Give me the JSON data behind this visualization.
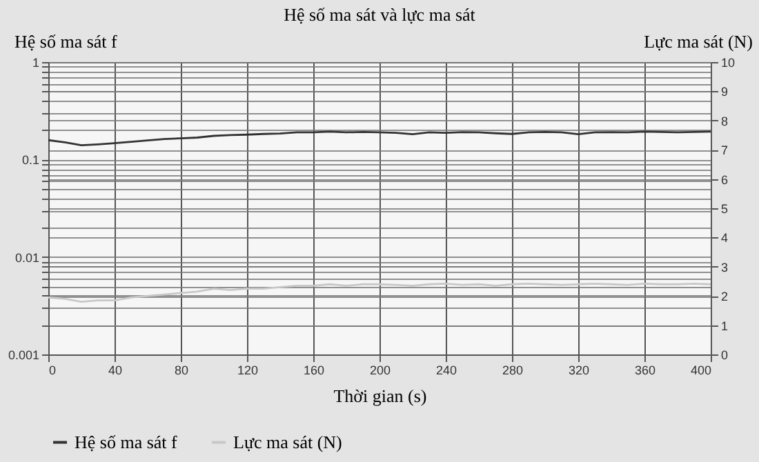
{
  "chart_data": {
    "type": "line",
    "title": "Hệ số ma sát và lực ma sát",
    "xlabel": "Thời gian (s)",
    "ylabel": "Hệ số ma sát f",
    "y2label": "Lực ma sát (N)",
    "x": [
      0,
      10,
      20,
      30,
      40,
      50,
      60,
      70,
      80,
      90,
      100,
      110,
      120,
      130,
      140,
      150,
      160,
      170,
      180,
      190,
      200,
      210,
      220,
      230,
      240,
      250,
      260,
      270,
      280,
      290,
      300,
      310,
      320,
      330,
      340,
      350,
      360,
      370,
      380,
      390,
      400
    ],
    "series": [
      {
        "name": "Hệ số ma sát f",
        "color": "#333333",
        "values": [
          0.158,
          0.15,
          0.14,
          0.143,
          0.147,
          0.152,
          0.157,
          0.162,
          0.165,
          0.168,
          0.175,
          0.178,
          0.18,
          0.183,
          0.185,
          0.19,
          0.19,
          0.193,
          0.19,
          0.192,
          0.19,
          0.188,
          0.182,
          0.19,
          0.188,
          0.191,
          0.19,
          0.186,
          0.183,
          0.19,
          0.192,
          0.19,
          0.182,
          0.19,
          0.191,
          0.19,
          0.193,
          0.192,
          0.19,
          0.192,
          0.193
        ]
      },
      {
        "name": "Lực ma sát (N)",
        "color": "#c8c8c8",
        "axis": "y2",
        "values": [
          1.95,
          1.9,
          1.8,
          1.85,
          1.85,
          1.95,
          2.0,
          2.05,
          2.1,
          2.15,
          2.25,
          2.2,
          2.25,
          2.25,
          2.3,
          2.35,
          2.35,
          2.4,
          2.35,
          2.4,
          2.4,
          2.38,
          2.35,
          2.4,
          2.42,
          2.38,
          2.4,
          2.35,
          2.4,
          2.42,
          2.4,
          2.38,
          2.4,
          2.42,
          2.4,
          2.38,
          2.42,
          2.4,
          2.4,
          2.42,
          2.4
        ]
      }
    ],
    "log": "y",
    "xlim": [
      0,
      400
    ],
    "xticks": [
      0,
      40,
      80,
      120,
      160,
      200,
      240,
      280,
      320,
      360,
      400
    ],
    "ylim": [
      0.001,
      1
    ],
    "yticks": [
      {
        "value": 0.001,
        "label": "0.001"
      },
      {
        "value": 0.002,
        "label": null
      },
      {
        "value": 0.003,
        "label": null
      },
      {
        "value": 0.004,
        "label": null
      },
      {
        "value": 0.005,
        "label": null
      },
      {
        "value": 0.006,
        "label": null
      },
      {
        "value": 0.007,
        "label": null
      },
      {
        "value": 0.008,
        "label": null
      },
      {
        "value": 0.009,
        "label": null
      },
      {
        "value": 0.01,
        "label": "0.01"
      },
      {
        "value": 0.02,
        "label": null
      },
      {
        "value": 0.03,
        "label": null
      },
      {
        "value": 0.04,
        "label": null
      },
      {
        "value": 0.05,
        "label": null
      },
      {
        "value": 0.06,
        "label": null
      },
      {
        "value": 0.07,
        "label": null
      },
      {
        "value": 0.08,
        "label": null
      },
      {
        "value": 0.09,
        "label": null
      },
      {
        "value": 0.1,
        "label": "0.1"
      },
      {
        "value": 0.2,
        "label": null
      },
      {
        "value": 0.3,
        "label": null
      },
      {
        "value": 0.4,
        "label": null
      },
      {
        "value": 0.5,
        "label": null
      },
      {
        "value": 0.6,
        "label": null
      },
      {
        "value": 0.7,
        "label": null
      },
      {
        "value": 0.8,
        "label": null
      },
      {
        "value": 0.9,
        "label": null
      },
      {
        "value": 1,
        "label": "1"
      }
    ],
    "y2lim": [
      0,
      10
    ],
    "y2ticks": [
      0,
      1,
      2,
      3,
      4,
      5,
      6,
      7,
      8,
      9,
      10
    ],
    "grid": true,
    "legend": "bottom",
    "marker": "none",
    "line_style": "solid"
  }
}
